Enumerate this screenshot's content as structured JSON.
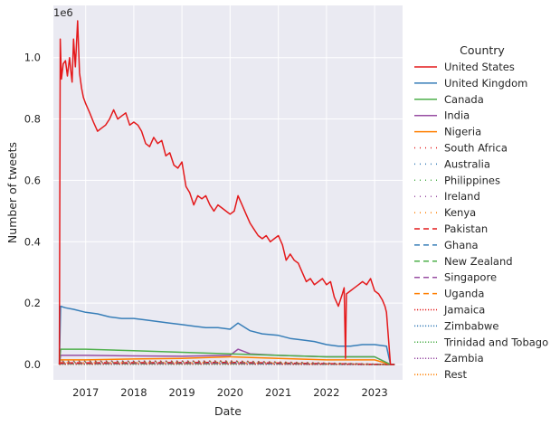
{
  "chart_data": {
    "type": "line",
    "xlabel": "Date",
    "ylabel": "Number of tweets",
    "offset_text": "1e6",
    "xlim": [
      "2016-05-01",
      "2023-08-01"
    ],
    "ylim": [
      -0.05,
      1.17
    ],
    "x_ticks": [
      "2017",
      "2018",
      "2019",
      "2020",
      "2021",
      "2022",
      "2023"
    ],
    "y_ticks": [
      "0.0",
      "0.2",
      "0.4",
      "0.6",
      "0.8",
      "1.0"
    ],
    "y_tick_values": [
      0.0,
      0.2,
      0.4,
      0.6,
      0.8,
      1.0
    ],
    "grid": true,
    "background": "#eaeaf2",
    "legend_title": "Country",
    "legend_position": "right",
    "series": [
      {
        "name": "United States",
        "color": "#e41a1c",
        "dash": "solid",
        "x": [
          "2016-06-15",
          "2016-06-22",
          "2016-07-01",
          "2016-07-15",
          "2016-08-01",
          "2016-08-15",
          "2016-09-01",
          "2016-09-10",
          "2016-09-20",
          "2016-10-01",
          "2016-10-15",
          "2016-11-01",
          "2016-11-15",
          "2016-12-01",
          "2016-12-15",
          "2017-01-01",
          "2017-02-01",
          "2017-03-01",
          "2017-04-01",
          "2017-05-01",
          "2017-06-01",
          "2017-07-01",
          "2017-08-01",
          "2017-09-01",
          "2017-10-01",
          "2017-11-01",
          "2017-12-01",
          "2018-01-01",
          "2018-02-01",
          "2018-03-01",
          "2018-04-01",
          "2018-05-01",
          "2018-06-01",
          "2018-07-01",
          "2018-08-01",
          "2018-09-01",
          "2018-10-01",
          "2018-11-01",
          "2018-12-01",
          "2019-01-01",
          "2019-02-01",
          "2019-03-01",
          "2019-04-01",
          "2019-05-01",
          "2019-06-01",
          "2019-07-01",
          "2019-08-01",
          "2019-09-01",
          "2019-10-01",
          "2019-11-01",
          "2019-12-01",
          "2020-01-01",
          "2020-02-01",
          "2020-03-01",
          "2020-04-01",
          "2020-05-01",
          "2020-06-01",
          "2020-07-01",
          "2020-08-01",
          "2020-09-01",
          "2020-10-01",
          "2020-11-01",
          "2020-12-01",
          "2021-01-01",
          "2021-02-01",
          "2021-03-01",
          "2021-04-01",
          "2021-05-01",
          "2021-06-01",
          "2021-07-01",
          "2021-08-01",
          "2021-09-01",
          "2021-10-01",
          "2021-11-01",
          "2021-12-01",
          "2022-01-01",
          "2022-02-01",
          "2022-03-01",
          "2022-04-01",
          "2022-05-01",
          "2022-05-15",
          "2022-05-25",
          "2022-06-01",
          "2022-07-01",
          "2022-08-01",
          "2022-09-01",
          "2022-10-01",
          "2022-11-01",
          "2022-12-01",
          "2023-01-01",
          "2023-02-01",
          "2023-03-01",
          "2023-03-20",
          "2023-04-01",
          "2023-05-01",
          "2023-06-01"
        ],
        "y": [
          0.0,
          1.06,
          0.93,
          0.98,
          0.99,
          0.94,
          1.0,
          0.96,
          0.92,
          1.06,
          0.97,
          1.12,
          0.95,
          0.9,
          0.87,
          0.85,
          0.82,
          0.79,
          0.76,
          0.77,
          0.78,
          0.8,
          0.83,
          0.8,
          0.81,
          0.82,
          0.78,
          0.79,
          0.78,
          0.76,
          0.72,
          0.71,
          0.74,
          0.72,
          0.73,
          0.68,
          0.69,
          0.65,
          0.64,
          0.66,
          0.58,
          0.56,
          0.52,
          0.55,
          0.54,
          0.55,
          0.52,
          0.5,
          0.52,
          0.51,
          0.5,
          0.49,
          0.5,
          0.55,
          0.52,
          0.49,
          0.46,
          0.44,
          0.42,
          0.41,
          0.42,
          0.4,
          0.41,
          0.42,
          0.39,
          0.34,
          0.36,
          0.34,
          0.33,
          0.3,
          0.27,
          0.28,
          0.26,
          0.27,
          0.28,
          0.26,
          0.27,
          0.22,
          0.19,
          0.23,
          0.25,
          0.02,
          0.23,
          0.24,
          0.25,
          0.26,
          0.27,
          0.26,
          0.28,
          0.24,
          0.23,
          0.21,
          0.19,
          0.17,
          0.0,
          0.0
        ]
      },
      {
        "name": "United Kingdom",
        "color": "#377eb8",
        "dash": "solid",
        "x": [
          "2016-06-15",
          "2016-06-25",
          "2016-08-01",
          "2016-10-01",
          "2017-01-01",
          "2017-04-01",
          "2017-07-01",
          "2017-10-01",
          "2018-01-01",
          "2018-04-01",
          "2018-07-01",
          "2018-10-01",
          "2019-01-01",
          "2019-04-01",
          "2019-07-01",
          "2019-10-01",
          "2020-01-01",
          "2020-03-01",
          "2020-06-01",
          "2020-09-01",
          "2021-01-01",
          "2021-04-01",
          "2021-07-01",
          "2021-10-01",
          "2022-01-01",
          "2022-04-01",
          "2022-07-01",
          "2022-10-01",
          "2023-01-01",
          "2023-04-01",
          "2023-05-01",
          "2023-06-01"
        ],
        "y": [
          0.0,
          0.19,
          0.185,
          0.18,
          0.17,
          0.165,
          0.155,
          0.15,
          0.15,
          0.145,
          0.14,
          0.135,
          0.13,
          0.125,
          0.12,
          0.12,
          0.115,
          0.135,
          0.11,
          0.1,
          0.095,
          0.085,
          0.08,
          0.075,
          0.065,
          0.06,
          0.06,
          0.065,
          0.065,
          0.06,
          0.0,
          0.0
        ]
      },
      {
        "name": "Canada",
        "color": "#4daf4a",
        "dash": "solid",
        "x": [
          "2016-06-15",
          "2016-06-25",
          "2017-01-01",
          "2018-01-01",
          "2019-01-01",
          "2020-01-01",
          "2021-01-01",
          "2022-01-01",
          "2023-01-01",
          "2023-05-01",
          "2023-06-01"
        ],
        "y": [
          0.0,
          0.05,
          0.05,
          0.045,
          0.04,
          0.035,
          0.03,
          0.025,
          0.025,
          0.0,
          0.0
        ]
      },
      {
        "name": "India",
        "color": "#984ea3",
        "dash": "solid",
        "x": [
          "2016-06-15",
          "2016-06-25",
          "2017-01-01",
          "2018-01-01",
          "2019-01-01",
          "2020-01-01",
          "2020-03-01",
          "2020-06-01",
          "2021-01-01",
          "2022-01-01",
          "2023-01-01",
          "2023-05-01",
          "2023-06-01"
        ],
        "y": [
          0.0,
          0.03,
          0.03,
          0.028,
          0.027,
          0.03,
          0.05,
          0.035,
          0.03,
          0.025,
          0.025,
          0.0,
          0.0
        ]
      },
      {
        "name": "Nigeria",
        "color": "#ff7f00",
        "dash": "solid",
        "x": [
          "2016-06-15",
          "2016-06-25",
          "2017-01-01",
          "2018-01-01",
          "2019-01-01",
          "2020-01-01",
          "2021-01-01",
          "2022-01-01",
          "2023-01-01",
          "2023-05-01",
          "2023-06-01"
        ],
        "y": [
          0.0,
          0.015,
          0.015,
          0.018,
          0.02,
          0.025,
          0.02,
          0.015,
          0.015,
          0.0,
          0.0
        ]
      },
      {
        "name": "South Africa",
        "color": "#e41a1c",
        "dash": "dot",
        "x": [
          "2016-06-15",
          "2016-06-25",
          "2020-01-01",
          "2023-05-01",
          "2023-06-01"
        ],
        "y": [
          0.0,
          0.01,
          0.012,
          0.0,
          0.0
        ]
      },
      {
        "name": "Australia",
        "color": "#377eb8",
        "dash": "dot",
        "x": [
          "2016-06-15",
          "2016-06-25",
          "2020-01-01",
          "2023-05-01",
          "2023-06-01"
        ],
        "y": [
          0.0,
          0.012,
          0.01,
          0.0,
          0.0
        ]
      },
      {
        "name": "Philippines",
        "color": "#4daf4a",
        "dash": "dot",
        "x": [
          "2016-06-15",
          "2016-06-25",
          "2020-01-01",
          "2023-05-01",
          "2023-06-01"
        ],
        "y": [
          0.0,
          0.008,
          0.01,
          0.0,
          0.0
        ]
      },
      {
        "name": "Ireland",
        "color": "#984ea3",
        "dash": "dot",
        "x": [
          "2016-06-15",
          "2016-06-25",
          "2020-01-01",
          "2023-05-01",
          "2023-06-01"
        ],
        "y": [
          0.0,
          0.006,
          0.005,
          0.0,
          0.0
        ]
      },
      {
        "name": "Kenya",
        "color": "#ff7f00",
        "dash": "dot",
        "x": [
          "2016-06-15",
          "2016-06-25",
          "2020-01-01",
          "2023-05-01",
          "2023-06-01"
        ],
        "y": [
          0.0,
          0.005,
          0.008,
          0.0,
          0.0
        ]
      },
      {
        "name": "Pakistan",
        "color": "#e41a1c",
        "dash": "dash",
        "x": [
          "2016-06-15",
          "2016-06-25",
          "2020-01-01",
          "2023-05-01",
          "2023-06-01"
        ],
        "y": [
          0.0,
          0.005,
          0.007,
          0.0,
          0.0
        ]
      },
      {
        "name": "Ghana",
        "color": "#377eb8",
        "dash": "dash",
        "x": [
          "2016-06-15",
          "2016-06-25",
          "2020-01-01",
          "2023-05-01",
          "2023-06-01"
        ],
        "y": [
          0.0,
          0.004,
          0.005,
          0.0,
          0.0
        ]
      },
      {
        "name": "New Zealand",
        "color": "#4daf4a",
        "dash": "dash",
        "x": [
          "2016-06-15",
          "2016-06-25",
          "2020-01-01",
          "2023-05-01",
          "2023-06-01"
        ],
        "y": [
          0.0,
          0.004,
          0.004,
          0.0,
          0.0
        ]
      },
      {
        "name": "Singapore",
        "color": "#984ea3",
        "dash": "dash",
        "x": [
          "2016-06-15",
          "2016-06-25",
          "2020-01-01",
          "2023-05-01",
          "2023-06-01"
        ],
        "y": [
          0.0,
          0.003,
          0.003,
          0.0,
          0.0
        ]
      },
      {
        "name": "Uganda",
        "color": "#ff7f00",
        "dash": "dash",
        "x": [
          "2016-06-15",
          "2016-06-25",
          "2020-01-01",
          "2023-05-01",
          "2023-06-01"
        ],
        "y": [
          0.0,
          0.002,
          0.003,
          0.0,
          0.0
        ]
      },
      {
        "name": "Jamaica",
        "color": "#e41a1c",
        "dash": "dense-dot",
        "x": [
          "2016-06-15",
          "2016-06-25",
          "2020-01-01",
          "2023-05-01",
          "2023-06-01"
        ],
        "y": [
          0.0,
          0.002,
          0.002,
          0.0,
          0.0
        ]
      },
      {
        "name": "Zimbabwe",
        "color": "#377eb8",
        "dash": "dense-dot",
        "x": [
          "2016-06-15",
          "2016-06-25",
          "2020-01-01",
          "2023-05-01",
          "2023-06-01"
        ],
        "y": [
          0.0,
          0.002,
          0.002,
          0.0,
          0.0
        ]
      },
      {
        "name": "Trinidad and Tobago",
        "color": "#4daf4a",
        "dash": "dense-dot",
        "x": [
          "2016-06-15",
          "2016-06-25",
          "2020-01-01",
          "2023-05-01",
          "2023-06-01"
        ],
        "y": [
          0.0,
          0.001,
          0.001,
          0.0,
          0.0
        ]
      },
      {
        "name": "Zambia",
        "color": "#984ea3",
        "dash": "dense-dot",
        "x": [
          "2016-06-15",
          "2016-06-25",
          "2020-01-01",
          "2023-05-01",
          "2023-06-01"
        ],
        "y": [
          0.0,
          0.001,
          0.001,
          0.0,
          0.0
        ]
      },
      {
        "name": "Rest",
        "color": "#ff7f00",
        "dash": "dense-dot",
        "x": [
          "2016-06-15",
          "2016-06-25",
          "2020-01-01",
          "2023-05-01",
          "2023-06-01"
        ],
        "y": [
          0.0,
          0.006,
          0.006,
          0.0,
          0.0
        ]
      }
    ]
  }
}
